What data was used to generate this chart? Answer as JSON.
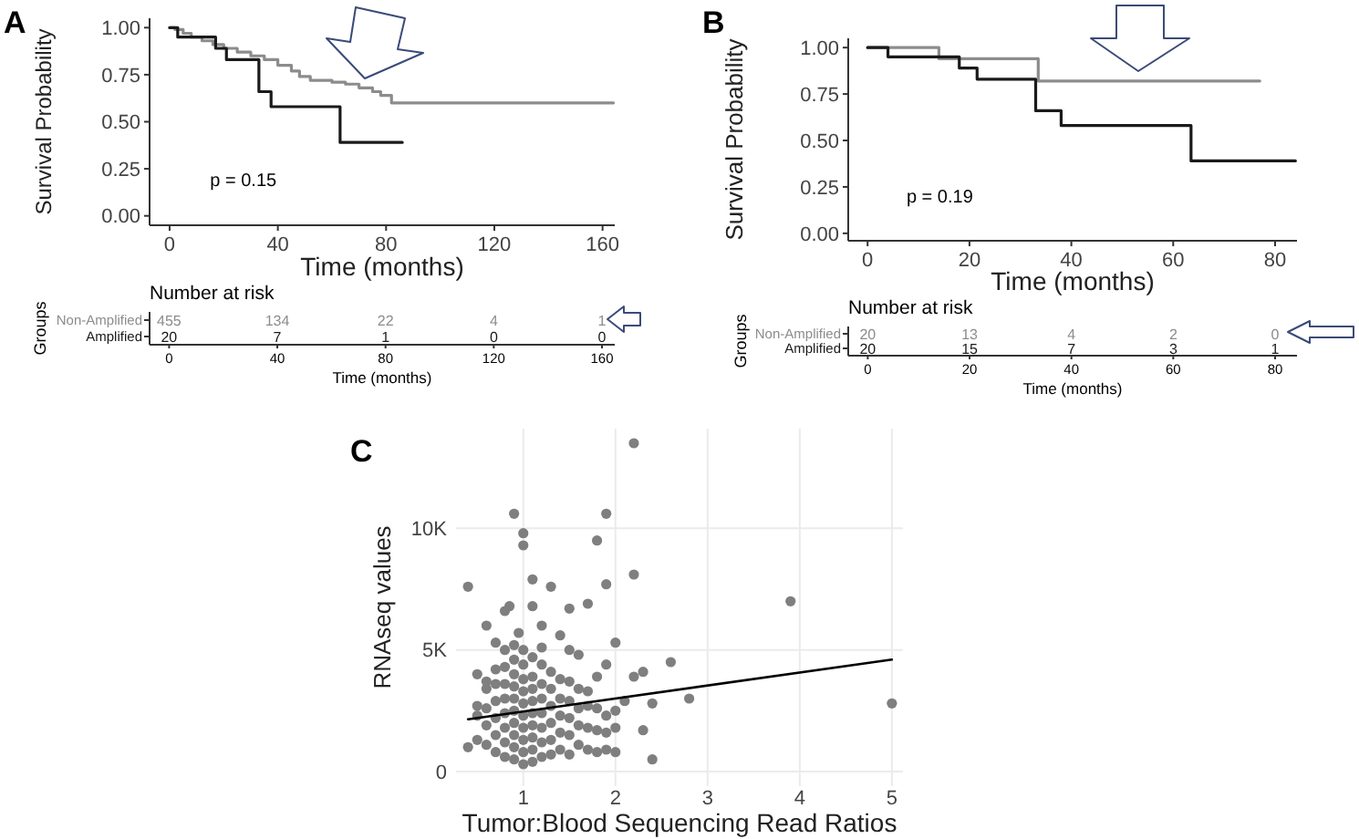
{
  "chart_data": [
    {
      "type": "step",
      "title": "A",
      "ylabel": "Survival Probability",
      "xlabel": "Time (months)",
      "xlim": [
        -7.4,
        164.5
      ],
      "xticks": [
        0,
        40,
        80,
        120,
        160
      ],
      "ylim": [
        -0.05,
        1.05
      ],
      "yticks": [
        {
          "value": 0,
          "label": "0.00"
        },
        {
          "value": 0.25,
          "label": "0.25"
        },
        {
          "value": 0.5,
          "label": "0.50"
        },
        {
          "value": 0.75,
          "label": "0.75"
        },
        {
          "value": 1,
          "label": "1.00"
        }
      ],
      "annotations": [
        "p = 0.15"
      ],
      "series": [
        {
          "color": "#8c8c8c",
          "x": [
            0,
            2,
            5,
            8,
            12,
            16,
            20,
            25,
            30,
            35,
            40,
            45,
            48,
            52,
            60,
            65,
            70,
            75,
            78,
            82,
            164
          ],
          "values": [
            1,
            0.99,
            0.97,
            0.95,
            0.93,
            0.91,
            0.89,
            0.87,
            0.85,
            0.83,
            0.8,
            0.77,
            0.74,
            0.72,
            0.71,
            0.7,
            0.68,
            0.66,
            0.64,
            0.6,
            0.6
          ]
        },
        {
          "color": "#1a1a1a",
          "x": [
            0,
            3,
            17,
            21,
            33,
            37.5,
            63,
            86
          ],
          "values": [
            1,
            0.95,
            0.89,
            0.83,
            0.66,
            0.58,
            0.39,
            0.39
          ]
        }
      ]
    },
    {
      "type": "heatmap",
      "title": "Number at risk",
      "ylabel": "Groups",
      "xlabel": "Time (months)",
      "categories": [
        "0",
        "40",
        "80",
        "120",
        "160"
      ],
      "data_labels": true,
      "y_categories": [
        "Non-Amplified",
        "Amplified"
      ],
      "colors": [
        "#8c8c8c",
        "#1a1a1a"
      ],
      "cells": [
        [
          455,
          134,
          22,
          4,
          1
        ],
        [
          20,
          7,
          1,
          0,
          0
        ]
      ]
    },
    {
      "type": "step",
      "title": "B",
      "ylabel": "Survival Probability",
      "xlabel": "Time (months)",
      "xlim": [
        -3.8,
        84.3
      ],
      "xticks": [
        0,
        20,
        40,
        60,
        80
      ],
      "ylim": [
        -0.04,
        1.05
      ],
      "yticks": [
        {
          "value": 0,
          "label": "0.00"
        },
        {
          "value": 0.25,
          "label": "0.25"
        },
        {
          "value": 0.5,
          "label": "0.50"
        },
        {
          "value": 0.75,
          "label": "0.75"
        },
        {
          "value": 1,
          "label": "1.00"
        }
      ],
      "annotations": [
        "p = 0.19"
      ],
      "series": [
        {
          "color": "#8c8c8c",
          "x": [
            0,
            14,
            33.5,
            77
          ],
          "values": [
            1,
            0.94,
            0.82,
            0.82
          ]
        },
        {
          "color": "#1a1a1a",
          "x": [
            0,
            4,
            18,
            21.5,
            33,
            38,
            63.5,
            84
          ],
          "values": [
            1,
            0.95,
            0.89,
            0.83,
            0.66,
            0.58,
            0.39,
            0.39
          ]
        }
      ]
    },
    {
      "type": "heatmap",
      "title": "Number at risk",
      "ylabel": "Groups",
      "xlabel": "Time (months)",
      "categories": [
        "0",
        "20",
        "40",
        "60",
        "80"
      ],
      "data_labels": true,
      "y_categories": [
        "Non-Amplified",
        "Amplified"
      ],
      "colors": [
        "#8c8c8c",
        "#1a1a1a"
      ],
      "cells": [
        [
          20,
          13,
          4,
          2,
          0
        ],
        [
          20,
          15,
          7,
          3,
          1
        ]
      ]
    },
    {
      "type": "scatter",
      "title": "C",
      "ylabel": "RNAseq values",
      "xlabel": "Tumor:Blood Sequencing Read Ratios",
      "xlim": [
        0.27,
        5.12
      ],
      "xticks": [
        1,
        2,
        3,
        4,
        5
      ],
      "ylim": [
        -600,
        14100
      ],
      "yticks": [
        0,
        {
          "value": 5000,
          "label": "5K"
        },
        {
          "value": 10000,
          "label": "10K"
        }
      ],
      "grid": true,
      "series": [
        {
          "color": "#7f7f7f",
          "x": [
            2.2,
            0.9,
            1.9,
            1.0,
            1.0,
            1.8,
            2.2,
            1.1,
            0.4,
            1.3,
            1.9,
            3.9,
            5.0,
            2.4,
            2.8,
            2.6,
            2.4,
            2.3,
            2.2,
            2.0,
            1.5,
            1.7,
            0.6,
            0.85,
            1.2,
            1.1,
            0.95,
            1.9,
            2.1,
            2.3,
            0.4,
            0.5,
            0.5,
            0.5,
            0.5,
            0.6,
            0.6,
            0.6,
            0.6,
            0.6,
            0.7,
            0.7,
            0.7,
            0.7,
            0.7,
            0.7,
            0.7,
            0.8,
            0.8,
            0.8,
            0.8,
            0.8,
            0.8,
            0.8,
            0.8,
            0.8,
            0.9,
            0.9,
            0.9,
            0.9,
            0.9,
            0.9,
            0.9,
            0.9,
            0.9,
            0.9,
            1.0,
            1.0,
            1.0,
            1.0,
            1.0,
            1.0,
            1.0,
            1.0,
            1.0,
            1.0,
            1.1,
            1.1,
            1.1,
            1.1,
            1.1,
            1.1,
            1.1,
            1.1,
            1.1,
            1.2,
            1.2,
            1.2,
            1.2,
            1.2,
            1.2,
            1.2,
            1.2,
            1.3,
            1.3,
            1.3,
            1.3,
            1.3,
            1.3,
            1.4,
            1.4,
            1.4,
            1.4,
            1.4,
            1.4,
            1.5,
            1.5,
            1.5,
            1.5,
            1.5,
            1.5,
            1.6,
            1.6,
            1.6,
            1.6,
            1.6,
            1.7,
            1.7,
            1.7,
            1.7,
            1.8,
            1.8,
            1.8,
            1.8,
            1.9,
            1.9,
            1.9,
            2.0,
            2.0,
            2.0
          ],
          "values": [
            13500,
            10600,
            10600,
            9800,
            9300,
            9500,
            8100,
            7900,
            7600,
            7600,
            7700,
            7000,
            2800,
            500,
            3000,
            4500,
            2800,
            4100,
            3900,
            5300,
            6700,
            6900,
            6000,
            6800,
            6000,
            6800,
            5700,
            4400,
            2900,
            1700,
            1000,
            4000,
            1300,
            2300,
            2700,
            1100,
            1900,
            2600,
            3400,
            3700,
            800,
            1500,
            2200,
            2900,
            3600,
            4200,
            5300,
            600,
            1200,
            1800,
            2400,
            3000,
            3600,
            4300,
            5000,
            6600,
            500,
            1000,
            1500,
            2000,
            2500,
            3000,
            3500,
            4000,
            4600,
            5200,
            300,
            800,
            1300,
            1800,
            2300,
            2800,
            3300,
            3800,
            4400,
            5000,
            400,
            900,
            1400,
            1900,
            2400,
            2900,
            3400,
            3900,
            4700,
            600,
            1200,
            1800,
            2400,
            3000,
            3600,
            4400,
            5100,
            700,
            1300,
            2000,
            2700,
            3400,
            4100,
            900,
            1600,
            2300,
            3000,
            3800,
            5600,
            700,
            1500,
            2200,
            2900,
            3700,
            5000,
            1100,
            1900,
            2600,
            3400,
            4800,
            900,
            1800,
            2700,
            3300,
            800,
            1700,
            2600,
            3900,
            900,
            1600,
            2300,
            800,
            1800,
            2500
          ]
        },
        {
          "type": "line",
          "color": "#000000",
          "x": [
            0.4,
            5
          ],
          "values": [
            2150,
            4600
          ]
        }
      ]
    }
  ]
}
